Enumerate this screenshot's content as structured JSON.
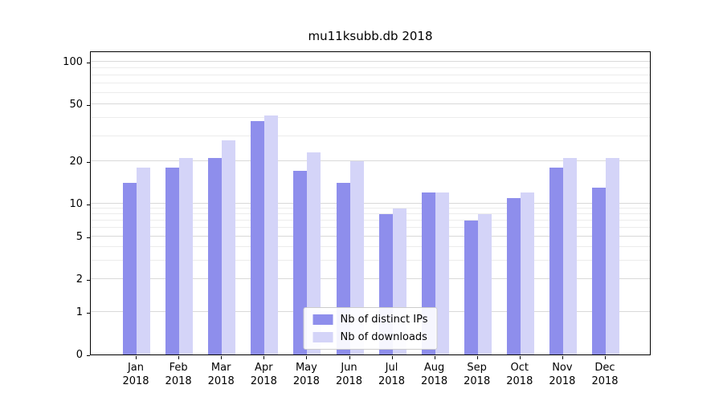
{
  "chart_data": {
    "type": "bar",
    "title": "mu11ksubb.db 2018",
    "categories": [
      "Jan",
      "Feb",
      "Mar",
      "Apr",
      "May",
      "Jun",
      "Jul",
      "Aug",
      "Sep",
      "Oct",
      "Nov",
      "Dec"
    ],
    "year": "2018",
    "series": [
      {
        "name": "Nb of distinct IPs",
        "color": "#8e8eec",
        "values": [
          14,
          18,
          21,
          38,
          17,
          14,
          8,
          12,
          7,
          11,
          18,
          13
        ]
      },
      {
        "name": "Nb of downloads",
        "color": "#d4d4f8",
        "values": [
          18,
          21,
          28,
          42,
          23,
          20,
          9,
          12,
          8,
          12,
          21,
          21
        ]
      }
    ],
    "y_ticks": [
      0,
      1,
      2,
      5,
      10,
      20,
      50,
      100
    ],
    "y_scale": "symlog",
    "ylim": [
      0,
      120
    ],
    "xlabel": "",
    "ylabel": "",
    "grid": true,
    "legend_position": "lower center"
  }
}
